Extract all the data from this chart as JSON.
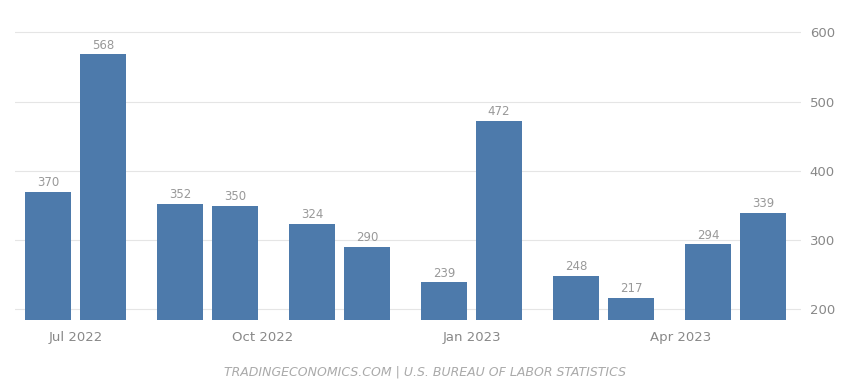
{
  "values": [
    370,
    568,
    352,
    350,
    324,
    290,
    239,
    472,
    248,
    217,
    294,
    339
  ],
  "bar_labels": [
    "370",
    "568",
    "352",
    "350",
    "324",
    "290",
    "239",
    "472",
    "248",
    "217",
    "294",
    "339"
  ],
  "bar_color": "#4d7aab",
  "x_positions": [
    0,
    1,
    2.4,
    3.4,
    4.8,
    5.8,
    7.2,
    8.2,
    9.6,
    10.6,
    12.0,
    13.0
  ],
  "x_tick_positions": [
    0.5,
    3.9,
    7.7,
    11.5
  ],
  "x_tick_labels": [
    "Jul 2022",
    "Oct 2022",
    "Jan 2023",
    "Apr 2023"
  ],
  "ylim": [
    185,
    625
  ],
  "yticks": [
    200,
    300,
    400,
    500,
    600
  ],
  "grid_color": "#e5e5e5",
  "label_color": "#999999",
  "background_color": "#ffffff",
  "footer_text": "TRADINGECONOMICS.COM | U.S. BUREAU OF LABOR STATISTICS",
  "footer_color": "#aaaaaa",
  "label_fontsize": 8.5,
  "tick_fontsize": 9.5,
  "footer_fontsize": 9,
  "bar_width": 0.85,
  "xlim": [
    -0.6,
    13.7
  ]
}
